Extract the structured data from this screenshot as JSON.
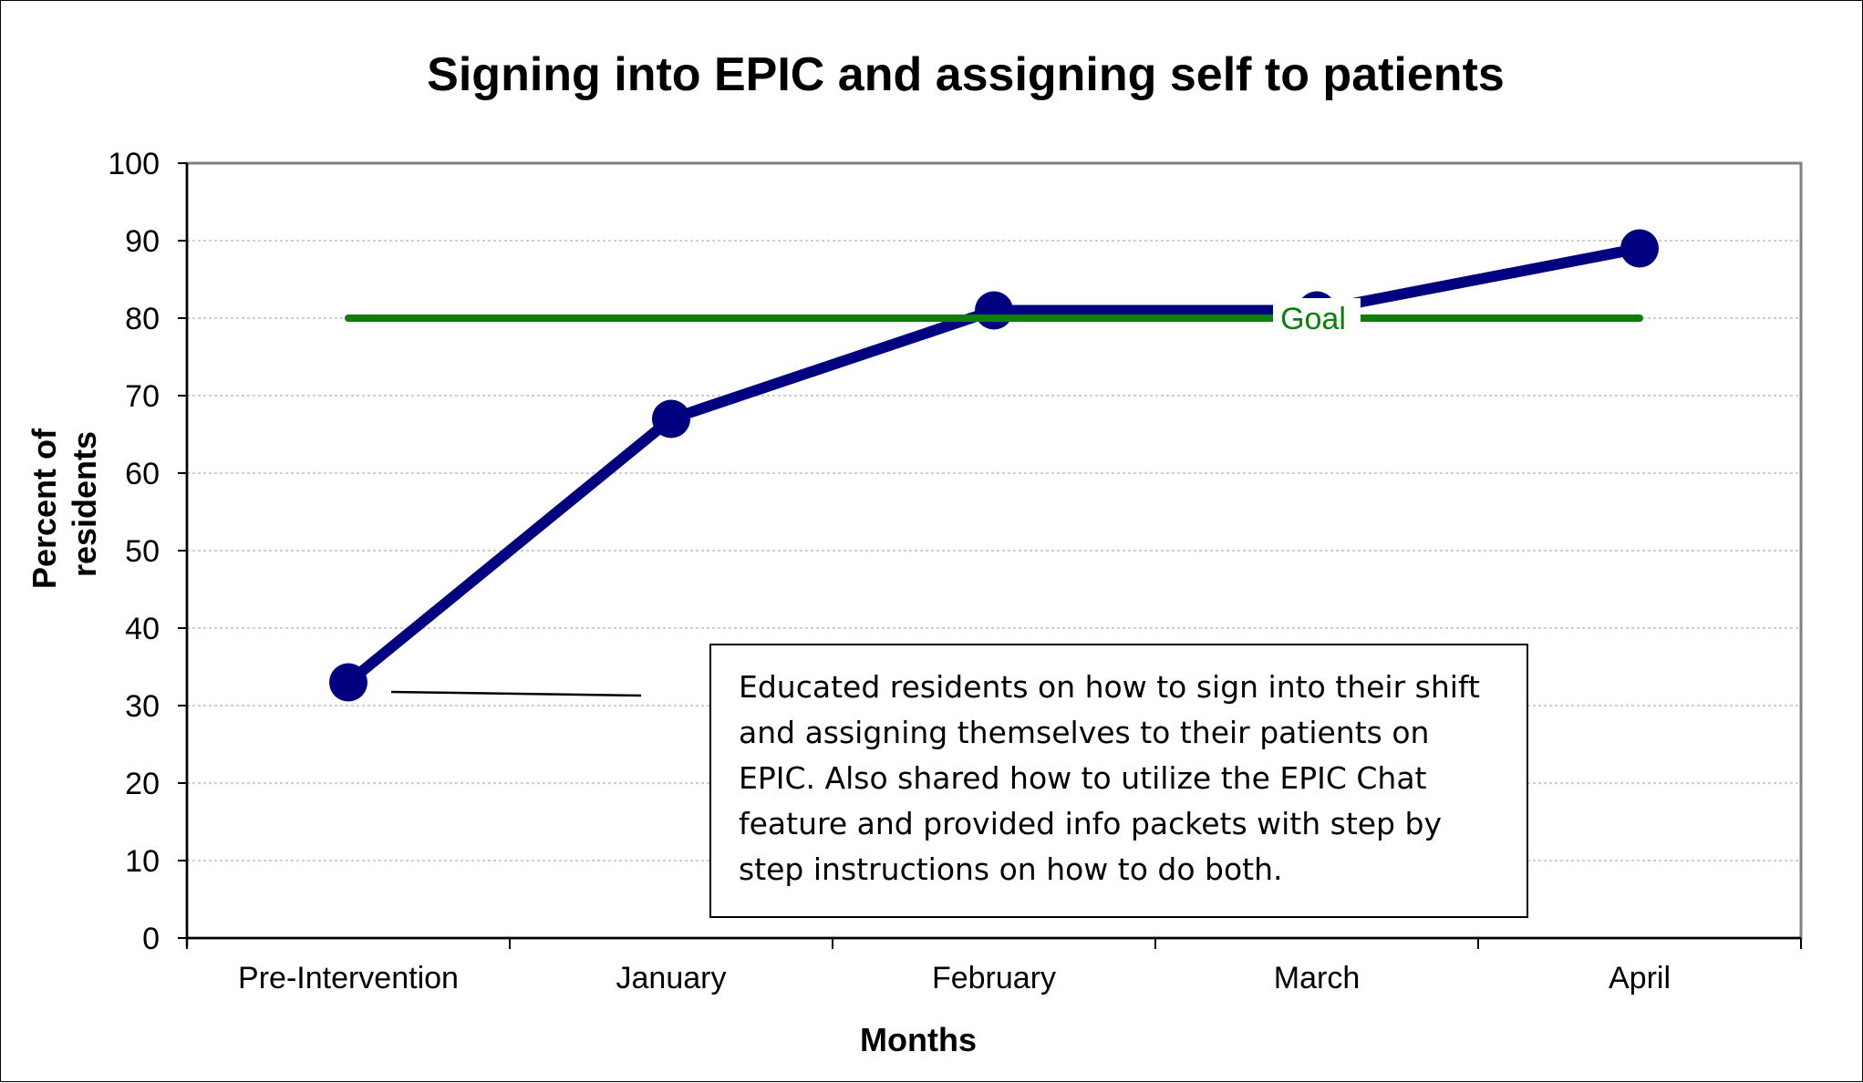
{
  "chart_data": {
    "type": "line",
    "title": "Signing into EPIC and assigning self to patients",
    "xlabel": "Months",
    "ylabel": "Percent of residents",
    "categories": [
      "Pre-Intervention",
      "January",
      "February",
      "March",
      "April"
    ],
    "ylim": [
      0,
      100
    ],
    "yticks": [
      "0",
      "10",
      "20",
      "30",
      "40",
      "50",
      "60",
      "70",
      "80",
      "90",
      "100"
    ],
    "grid": true,
    "series": [
      {
        "values": [
          33,
          67,
          81,
          81,
          89
        ],
        "color": "#000080"
      }
    ],
    "goal": {
      "label": "Goal",
      "value": 80,
      "color": "#0a7f0a"
    },
    "annotation": "Educated residents on how to sign into their shift and assigning themselves to their patients on EPIC. Also shared how to utilize the EPIC Chat feature and provided info packets with step by step instructions on how to do both."
  }
}
